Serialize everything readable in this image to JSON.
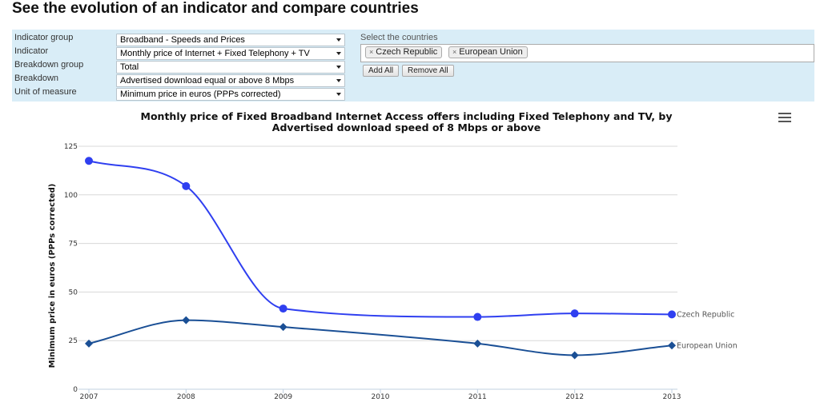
{
  "page": {
    "heading": "See the evolution of an indicator and compare countries"
  },
  "filters": {
    "rows": [
      {
        "label": "Indicator group",
        "value": "Broadband - Speeds and Prices"
      },
      {
        "label": "Indicator",
        "value": "Monthly price of Internet + Fixed Telephony + TV"
      },
      {
        "label": "Breakdown group",
        "value": "Total"
      },
      {
        "label": "Breakdown",
        "value": "Advertised download equal or above 8 Mbps"
      },
      {
        "label": "Unit of measure",
        "value": "Minimum price in euros (PPPs corrected)"
      }
    ],
    "countries_label": "Select the countries",
    "selected_countries": [
      "Czech Republic",
      "European Union"
    ],
    "remove_tag_symbol": "×",
    "add_all_label": "Add All",
    "remove_all_label": "Remove All"
  },
  "chart_menu_icon": "hamburger-menu-icon",
  "chart_data": {
    "type": "line",
    "title": "Monthly price of Fixed Broadband Internet Access offers including Fixed Telephony and TV, by Advertised download speed of 8 Mbps or above",
    "ylabel": "Minimum price in euros (PPPs corrected)",
    "xlabel": "",
    "x": [
      2007,
      2008,
      2009,
      2010,
      2011,
      2012,
      2013
    ],
    "ylim": [
      0,
      125
    ],
    "yticks": [
      0,
      25,
      50,
      75,
      100,
      125
    ],
    "grid": true,
    "series": [
      {
        "name": "Czech Republic",
        "color": "#2f3ff0",
        "marker": "circle",
        "points": [
          [
            2007,
            117.5
          ],
          [
            2008,
            104.5
          ],
          [
            2009,
            41.5
          ],
          [
            2011,
            37.2
          ],
          [
            2012,
            39.0
          ],
          [
            2013,
            38.5
          ]
        ]
      },
      {
        "name": "European Union",
        "color": "#1a4f95",
        "marker": "diamond",
        "points": [
          [
            2007,
            23.5
          ],
          [
            2008,
            35.5
          ],
          [
            2009,
            32.0
          ],
          [
            2011,
            23.5
          ],
          [
            2012,
            17.5
          ],
          [
            2013,
            22.5
          ]
        ]
      }
    ]
  }
}
